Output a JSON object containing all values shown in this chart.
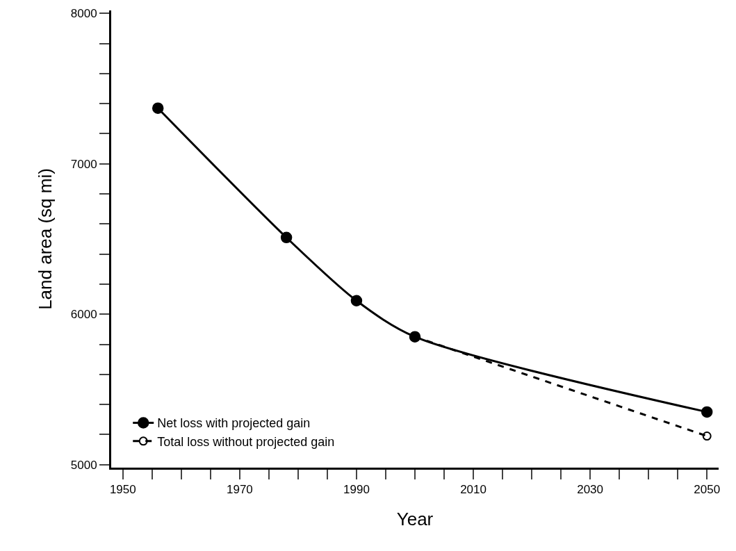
{
  "chart_data": {
    "type": "line",
    "xlabel": "Year",
    "ylabel": "Land area (sq mi)",
    "xlim": [
      1948,
      2052
    ],
    "ylim": [
      4980,
      8020
    ],
    "xticks": [
      1950,
      {
        "value": 1955,
        "label": null
      },
      {
        "value": 1960,
        "label": null
      },
      {
        "value": 1965,
        "label": null
      },
      1970,
      {
        "value": 1975,
        "label": null
      },
      {
        "value": 1980,
        "label": null
      },
      {
        "value": 1985,
        "label": null
      },
      1990,
      {
        "value": 1995,
        "label": null
      },
      {
        "value": 2000,
        "label": null
      },
      {
        "value": 2005,
        "label": null
      },
      2010,
      {
        "value": 2015,
        "label": null
      },
      {
        "value": 2020,
        "label": null
      },
      {
        "value": 2025,
        "label": null
      },
      2030,
      {
        "value": 2035,
        "label": null
      },
      {
        "value": 2040,
        "label": null
      },
      {
        "value": 2045,
        "label": null
      },
      2050
    ],
    "yticks": [
      5000,
      {
        "value": 5200,
        "label": null
      },
      {
        "value": 5400,
        "label": null
      },
      {
        "value": 5600,
        "label": null
      },
      {
        "value": 5800,
        "label": null
      },
      6000,
      {
        "value": 6200,
        "label": null
      },
      {
        "value": 6400,
        "label": null
      },
      {
        "value": 6600,
        "label": null
      },
      {
        "value": 6800,
        "label": null
      },
      7000,
      {
        "value": 7200,
        "label": null
      },
      {
        "value": 7400,
        "label": null
      },
      {
        "value": 7600,
        "label": null
      },
      {
        "value": 7800,
        "label": null
      },
      8000
    ],
    "grid": false,
    "legend": "bottom left",
    "series": [
      {
        "name": "Net loss with projected gain",
        "color": "#000000",
        "x": [
          1956,
          1978,
          1990,
          2000,
          2050
        ],
        "values": [
          7370,
          6510,
          6090,
          5850,
          5350
        ],
        "marker": "circle",
        "line_style": "solid"
      },
      {
        "name": "Total loss without projected gain",
        "color": "#000000",
        "x": [
          2000,
          2050
        ],
        "values": [
          5850,
          5190
        ],
        "marker": "circle-open",
        "line_style": "dashed"
      }
    ]
  }
}
